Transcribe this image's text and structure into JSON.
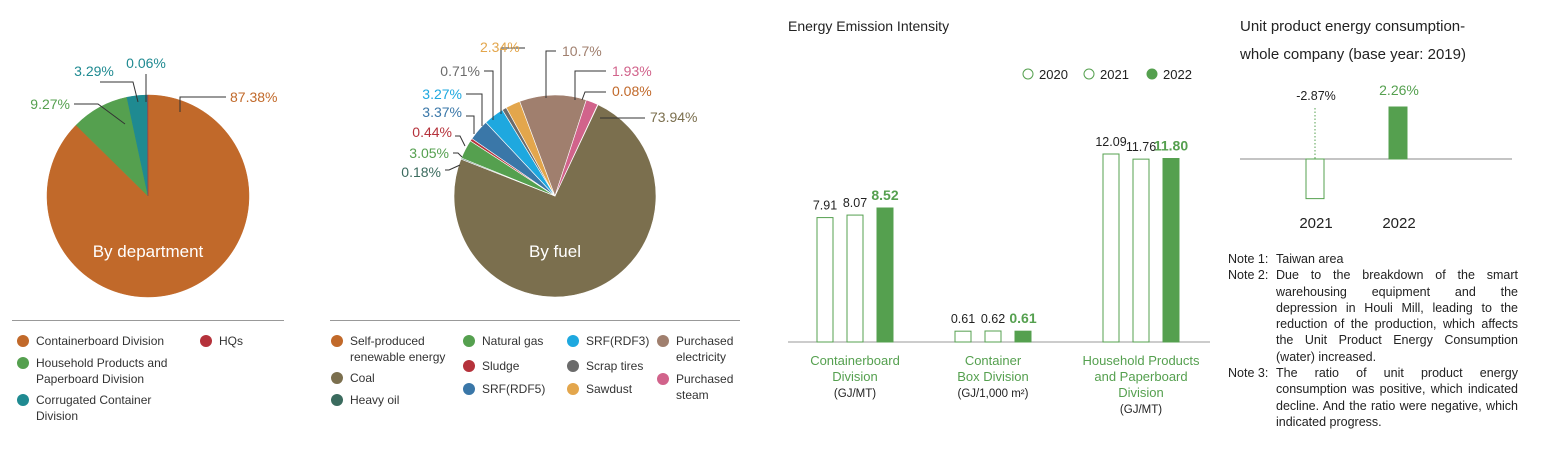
{
  "colors": {
    "orange": "#c1692a",
    "green": "#55a04f",
    "teal": "#1f8a91",
    "red": "#b5323b",
    "olive": "#7b6f4e",
    "dark_teal": "#3b6b5e",
    "blue": "#3a77a8",
    "sky": "#1ea8df",
    "gray": "#6b6b6b",
    "sand": "#e3a64c",
    "mauve": "#a07f6e",
    "pink": "#d1638b",
    "bar_green": "#55a04f"
  },
  "chart_data": [
    {
      "type": "pie",
      "center_label": "By department",
      "slices": [
        {
          "name": "Containerboard Division",
          "value": 87.38,
          "label": "87.38%",
          "color": "#c1692a"
        },
        {
          "name": "Household Products and Paperboard Division",
          "value": 9.27,
          "label": "9.27%",
          "color": "#55a04f"
        },
        {
          "name": "Corrugated Container Division",
          "value": 3.29,
          "label": "3.29%",
          "color": "#1f8a91"
        },
        {
          "name": "HQs",
          "value": 0.06,
          "label": "0.06%",
          "color": "#b5323b"
        }
      ],
      "legend": [
        {
          "text": [
            "Containerboard Division"
          ],
          "color": "#c1692a"
        },
        {
          "text": [
            "Household Products and",
            "Paperboard Division"
          ],
          "color": "#55a04f"
        },
        {
          "text": [
            "Corrugated Container",
            "Division"
          ],
          "color": "#1f8a91"
        },
        {
          "text": [
            "HQs"
          ],
          "color": "#b5323b"
        }
      ]
    },
    {
      "type": "pie",
      "center_label": "By fuel",
      "slices": [
        {
          "name": "Coal",
          "value": 73.94,
          "label": "73.94%",
          "color": "#7b6f4e"
        },
        {
          "name": "Heavy oil",
          "value": 0.18,
          "label": "0.18%",
          "color": "#3b6b5e"
        },
        {
          "name": "Natural gas",
          "value": 3.05,
          "label": "3.05%",
          "color": "#55a04f"
        },
        {
          "name": "Sludge",
          "value": 0.44,
          "label": "0.44%",
          "color": "#b5323b"
        },
        {
          "name": "SRF(RDF5)",
          "value": 3.37,
          "label": "3.37%",
          "color": "#3a77a8"
        },
        {
          "name": "SRF(RDF3)",
          "value": 3.27,
          "label": "3.27%",
          "color": "#1ea8df"
        },
        {
          "name": "Scrap tires",
          "value": 0.71,
          "label": "0.71%",
          "color": "#6b6b6b"
        },
        {
          "name": "Sawdust",
          "value": 2.34,
          "label": "2.34%",
          "color": "#e3a64c"
        },
        {
          "name": "Purchased electricity",
          "value": 10.7,
          "label": "10.7%",
          "color": "#a07f6e"
        },
        {
          "name": "Purchased steam",
          "value": 1.93,
          "label": "1.93%",
          "color": "#d1638b"
        },
        {
          "name": "Self-produced renewable energy",
          "value": 0.08,
          "label": "0.08%",
          "color": "#c1692a"
        }
      ],
      "legend": [
        {
          "text": [
            "Self-produced",
            "renewable energy"
          ],
          "color": "#c1692a"
        },
        {
          "text": [
            "Coal"
          ],
          "color": "#7b6f4e"
        },
        {
          "text": [
            "Heavy oil"
          ],
          "color": "#3b6b5e"
        },
        {
          "text": [
            "Natural gas"
          ],
          "color": "#55a04f"
        },
        {
          "text": [
            "Sludge"
          ],
          "color": "#b5323b"
        },
        {
          "text": [
            "SRF(RDF5)"
          ],
          "color": "#3a77a8"
        },
        {
          "text": [
            "SRF(RDF3)"
          ],
          "color": "#1ea8df"
        },
        {
          "text": [
            "Scrap tires"
          ],
          "color": "#6b6b6b"
        },
        {
          "text": [
            "Sawdust"
          ],
          "color": "#e3a64c"
        },
        {
          "text": [
            "Purchased",
            "electricity"
          ],
          "color": "#a07f6e"
        },
        {
          "text": [
            "Purchased",
            "steam"
          ],
          "color": "#d1638b"
        }
      ]
    },
    {
      "type": "bar",
      "title": "Energy Emission Intensity",
      "legend": [
        "2020",
        "2021",
        "2022"
      ],
      "groups": [
        {
          "name": [
            "Containerboard",
            "Division"
          ],
          "unit": "(GJ/MT)",
          "values": [
            7.91,
            8.07,
            8.52
          ],
          "labels": [
            "7.91",
            "8.07",
            "8.52"
          ]
        },
        {
          "name": [
            "Container",
            "Box Division"
          ],
          "unit": "(GJ/1,000 m²)",
          "values": [
            0.61,
            0.62,
            0.61
          ],
          "labels": [
            "0.61",
            "0.62",
            "0.61"
          ]
        },
        {
          "name": [
            "Household Products",
            "and Paperboard",
            "Division"
          ],
          "unit": "(GJ/MT)",
          "values": [
            12.09,
            11.76,
            11.8
          ],
          "labels": [
            "12.09",
            "11.76",
            "11.80"
          ]
        }
      ]
    },
    {
      "type": "bar",
      "title": [
        "Unit product energy consumption-",
        "whole company (base year: 2019)"
      ],
      "categories": [
        "2021",
        "2022"
      ],
      "values": [
        -2.87,
        2.26
      ],
      "labels": [
        "-2.87%",
        "2.26%"
      ]
    }
  ],
  "notes": [
    {
      "label": "Note 1:",
      "text": "Taiwan area"
    },
    {
      "label": "Note 2:",
      "text": "Due to the breakdown of the smart warehousing equipment and the depression in Houli Mill, leading to the reduction of the production, which affects the Unit Product Energy Consumption (water) increased."
    },
    {
      "label": "Note 3:",
      "text": "The ratio of unit product energy consumption was positive, which indicated decline. And the ratio were negative, which indicated progress."
    }
  ]
}
